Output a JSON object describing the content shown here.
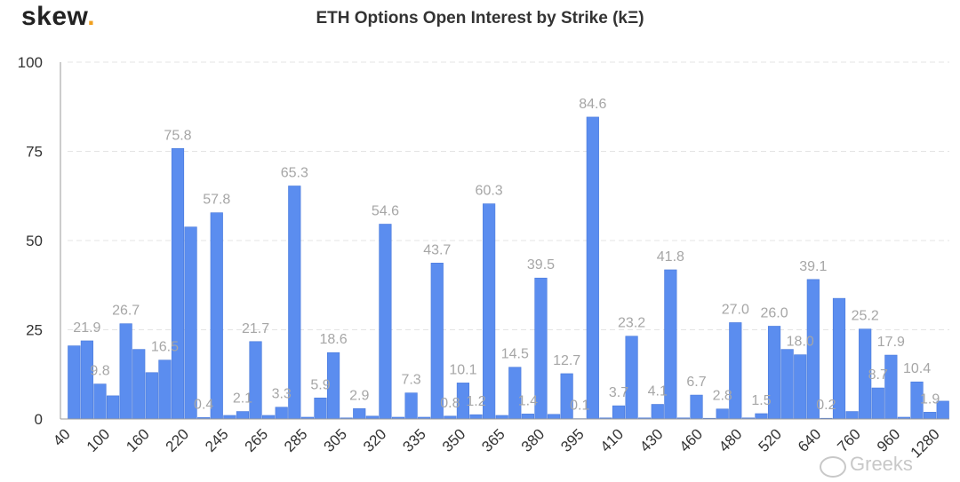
{
  "header": {
    "logo": "skew",
    "logo_dot": "."
  },
  "chart_data": {
    "type": "bar",
    "title": "ETH Options Open Interest by Strike (kΞ)",
    "xlabel": "",
    "ylabel": "",
    "ylim": [
      0,
      100
    ],
    "yticks": [
      0,
      25,
      50,
      75,
      100
    ],
    "grid": true,
    "bar_color": "#5b8def",
    "label_color": "#a6a6a6",
    "xtick_labels": [
      "40",
      "100",
      "160",
      "220",
      "245",
      "265",
      "285",
      "305",
      "320",
      "335",
      "350",
      "365",
      "380",
      "395",
      "410",
      "430",
      "460",
      "480",
      "520",
      "640",
      "760",
      "960",
      "1280"
    ],
    "values": [
      20.5,
      21.9,
      9.8,
      6.5,
      26.7,
      19.5,
      13.0,
      16.5,
      75.8,
      53.8,
      0.4,
      57.8,
      1.0,
      2.1,
      21.7,
      1.0,
      3.3,
      65.3,
      0.5,
      5.9,
      18.6,
      0.3,
      2.9,
      0.8,
      54.6,
      0.5,
      7.3,
      0.5,
      43.7,
      0.8,
      10.1,
      1.2,
      60.3,
      1.0,
      14.5,
      1.4,
      39.5,
      1.3,
      12.7,
      0.1,
      84.6,
      0.3,
      3.7,
      23.2,
      0.3,
      4.1,
      41.8,
      0.3,
      6.7,
      0.2,
      2.8,
      27.0,
      0.3,
      1.5,
      26.0,
      19.5,
      18.0,
      39.1,
      0.2,
      33.8,
      2.1,
      25.2,
      8.7,
      17.9,
      0.5,
      10.4,
      1.9,
      5.0
    ],
    "data_labels": [
      {
        "bar": 1,
        "text": "21.9"
      },
      {
        "bar": 2,
        "text": "9.8"
      },
      {
        "bar": 4,
        "text": "26.7"
      },
      {
        "bar": 7,
        "text": "16.5"
      },
      {
        "bar": 8,
        "text": "75.8"
      },
      {
        "bar": 10,
        "text": "0.4"
      },
      {
        "bar": 11,
        "text": "57.8"
      },
      {
        "bar": 13,
        "text": "2.1"
      },
      {
        "bar": 14,
        "text": "21.7"
      },
      {
        "bar": 16,
        "text": "3.3"
      },
      {
        "bar": 17,
        "text": "65.3"
      },
      {
        "bar": 19,
        "text": "5.9"
      },
      {
        "bar": 20,
        "text": "18.6"
      },
      {
        "bar": 22,
        "text": "2.9"
      },
      {
        "bar": 24,
        "text": "54.6"
      },
      {
        "bar": 26,
        "text": "7.3"
      },
      {
        "bar": 28,
        "text": "43.7"
      },
      {
        "bar": 29,
        "text": "0.8"
      },
      {
        "bar": 30,
        "text": "10.1"
      },
      {
        "bar": 31,
        "text": "1.2"
      },
      {
        "bar": 32,
        "text": "60.3"
      },
      {
        "bar": 34,
        "text": "14.5"
      },
      {
        "bar": 35,
        "text": "1.4"
      },
      {
        "bar": 36,
        "text": "39.5"
      },
      {
        "bar": 38,
        "text": "12.7"
      },
      {
        "bar": 39,
        "text": "0.1"
      },
      {
        "bar": 40,
        "text": "84.6"
      },
      {
        "bar": 42,
        "text": "3.7"
      },
      {
        "bar": 43,
        "text": "23.2"
      },
      {
        "bar": 45,
        "text": "4.1"
      },
      {
        "bar": 46,
        "text": "41.8"
      },
      {
        "bar": 48,
        "text": "6.7"
      },
      {
        "bar": 50,
        "text": "2.8"
      },
      {
        "bar": 51,
        "text": "27.0"
      },
      {
        "bar": 53,
        "text": "1.5"
      },
      {
        "bar": 54,
        "text": "26.0"
      },
      {
        "bar": 56,
        "text": "18.0"
      },
      {
        "bar": 57,
        "text": "39.1"
      },
      {
        "bar": 58,
        "text": "0.2"
      },
      {
        "bar": 61,
        "text": "25.2"
      },
      {
        "bar": 62,
        "text": "8.7"
      },
      {
        "bar": 63,
        "text": "17.9"
      },
      {
        "bar": 65,
        "text": "10.4"
      },
      {
        "bar": 66,
        "text": "1.9"
      }
    ]
  },
  "watermark": {
    "text": "Greeks"
  }
}
